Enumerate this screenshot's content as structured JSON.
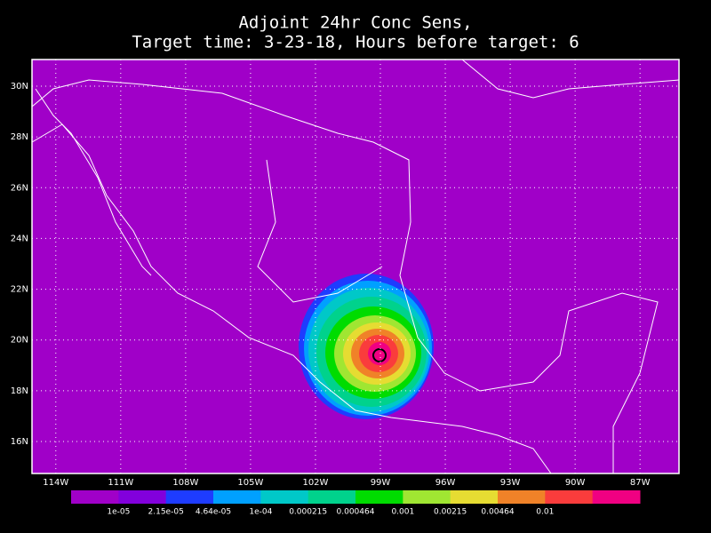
{
  "header": {
    "title": "Adjoint 24hr Conc Sens,",
    "subtitle": "Target time: 3-23-18, Hours before target: 6"
  },
  "map": {
    "background": "#a000c8",
    "lonlim": [
      -115.1,
      -85.2
    ],
    "latlim": [
      14.74,
      31.05
    ],
    "lonticks": [
      {
        "value": -114,
        "label": "114W"
      },
      {
        "value": -111,
        "label": "111W"
      },
      {
        "value": -108,
        "label": "108W"
      },
      {
        "value": -105,
        "label": "105W"
      },
      {
        "value": -102,
        "label": "102W"
      },
      {
        "value": -99,
        "label": "99W"
      },
      {
        "value": -96,
        "label": "96W"
      },
      {
        "value": -93,
        "label": "93W"
      },
      {
        "value": -90,
        "label": "90W"
      },
      {
        "value": -87,
        "label": "87W"
      }
    ],
    "latticks": [
      {
        "value": 16,
        "label": "16N"
      },
      {
        "value": 18,
        "label": "18N"
      },
      {
        "value": 20,
        "label": "20N"
      },
      {
        "value": 22,
        "label": "22N"
      },
      {
        "value": 24,
        "label": "24N"
      },
      {
        "value": 26,
        "label": "26N"
      },
      {
        "value": 28,
        "label": "28N"
      },
      {
        "value": 30,
        "label": "30N"
      }
    ],
    "grid": true
  },
  "colorbar": {
    "colors": [
      "#a000c8",
      "#8200dc",
      "#1e3cff",
      "#00a0ff",
      "#00c8c8",
      "#00d28c",
      "#00dc00",
      "#a0e632",
      "#e6dc32",
      "#f08228",
      "#fa3c3c",
      "#f00082"
    ],
    "levels": [
      {
        "value": 1e-05,
        "label": "1e-05"
      },
      {
        "value": 2.15e-05,
        "label": "2.15e-05"
      },
      {
        "value": 4.64e-05,
        "label": "4.64e-05"
      },
      {
        "value": 0.0001,
        "label": "1e-04"
      },
      {
        "value": 0.000215,
        "label": "0.000215"
      },
      {
        "value": 0.000464,
        "label": "0.000464"
      },
      {
        "value": 0.001,
        "label": "0.001"
      },
      {
        "value": 0.00215,
        "label": "0.00215"
      },
      {
        "value": 0.00464,
        "label": "0.00464"
      },
      {
        "value": 0.01,
        "label": "0.01"
      }
    ]
  }
}
